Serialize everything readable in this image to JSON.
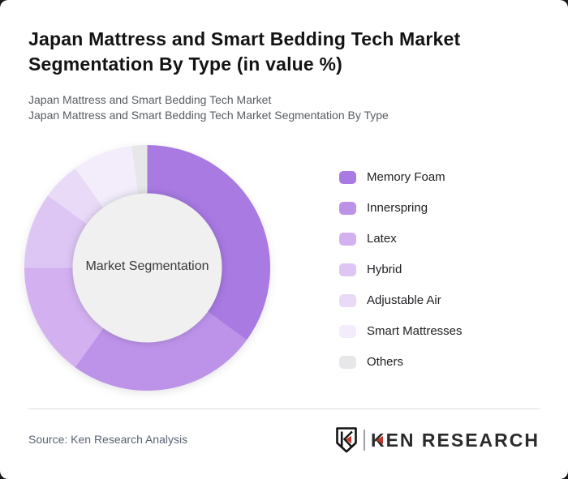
{
  "page": {
    "title": "Japan Mattress and Smart Bedding Tech Market Segmentation By Type (in value %)",
    "subtitle_line1": "Japan Mattress and Smart Bedding Tech Market",
    "subtitle_line2": "Japan Mattress and Smart Bedding Tech Market Segmentation By Type"
  },
  "chart_data": {
    "type": "pie",
    "variant": "donut",
    "title": "Japan Mattress and Smart Bedding Tech Market Segmentation By Type (in value %)",
    "center_label": "Market Segmentation",
    "unit": "value %",
    "start_angle_deg": 0,
    "direction": "clockwise",
    "legend_position": "right",
    "categories": [
      "Memory Foam",
      "Innerspring",
      "Latex",
      "Hybrid",
      "Adjustable Air",
      "Smart Mattresses",
      "Others"
    ],
    "values": [
      35,
      25,
      15,
      10,
      5,
      8,
      2
    ],
    "colors": [
      "#a87ae2",
      "#bd93ea",
      "#d3b1f1",
      "#ddc6f4",
      "#e9daf8",
      "#f2ecfb",
      "#e7e7e9"
    ],
    "inner_circle_color": "#f0f0f0",
    "data_labels_shown": false
  },
  "footer": {
    "source": "Source: Ken Research Analysis",
    "logo_text": "KEN RESEARCH"
  }
}
